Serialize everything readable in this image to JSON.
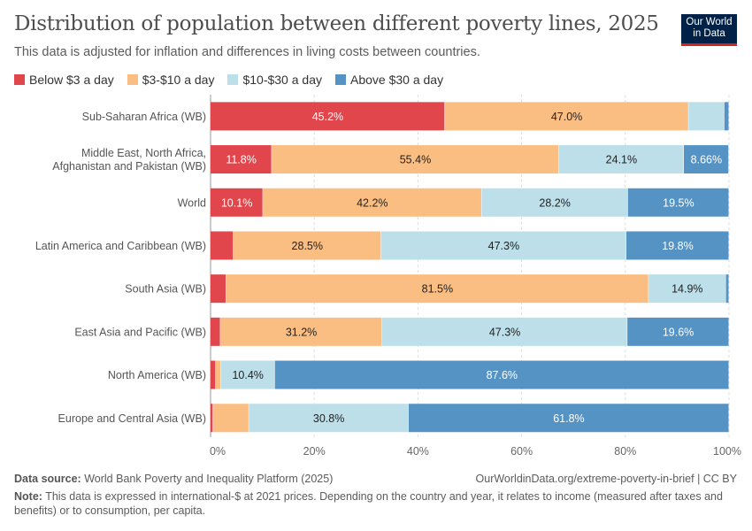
{
  "header": {
    "title": "Distribution of population between different poverty lines, 2025",
    "subtitle": "This data is adjusted for inflation and differences in living costs between countries.",
    "logo_line1": "Our World",
    "logo_line2": "in Data"
  },
  "chart_data": {
    "type": "bar",
    "orientation": "horizontal",
    "stacked": true,
    "title": "Distribution of population between different poverty lines, 2025",
    "categories": [
      [
        "Sub-Saharan Africa (WB)"
      ],
      [
        "Middle East, North Africa,",
        "Afghanistan and Pakistan (WB)"
      ],
      [
        "World"
      ],
      [
        "Latin America and Caribbean (WB)"
      ],
      [
        "South Asia (WB)"
      ],
      [
        "East Asia and Pacific (WB)"
      ],
      [
        "North America (WB)"
      ],
      [
        "Europe and Central Asia (WB)"
      ]
    ],
    "series": [
      {
        "name": "Below $3 a day",
        "color": "#e0464b",
        "label_color": "#ffffff",
        "values": [
          45.2,
          11.8,
          10.1,
          4.4,
          3.0,
          1.9,
          1.0,
          0.5
        ],
        "labels": [
          "45.2%",
          "11.8%",
          "10.1%",
          "",
          "",
          "",
          "",
          ""
        ]
      },
      {
        "name": "$3-$10 a day",
        "color": "#fbbe82",
        "label_color": "#222222",
        "values": [
          47.0,
          55.4,
          42.2,
          28.5,
          81.5,
          31.2,
          1.0,
          6.9
        ],
        "labels": [
          "47.0%",
          "55.4%",
          "42.2%",
          "28.5%",
          "81.5%",
          "31.2%",
          "",
          ""
        ]
      },
      {
        "name": "$10-$30 a day",
        "color": "#bcdfea",
        "label_color": "#222222",
        "values": [
          6.9,
          24.1,
          28.2,
          47.3,
          14.9,
          47.3,
          10.4,
          30.8
        ],
        "labels": [
          "",
          "24.1%",
          "28.2%",
          "47.3%",
          "14.9%",
          "47.3%",
          "10.4%",
          "30.8%"
        ]
      },
      {
        "name": "Above $30 a day",
        "color": "#5593c5",
        "label_color": "#ffffff",
        "values": [
          0.9,
          8.66,
          19.5,
          19.8,
          0.6,
          19.6,
          87.6,
          61.8
        ],
        "labels": [
          "",
          "8.66%",
          "19.5%",
          "19.8%",
          "",
          "19.6%",
          "87.6%",
          "61.8%"
        ]
      }
    ],
    "xlim": [
      0,
      100
    ],
    "xticks": [
      "0%",
      "20%",
      "40%",
      "60%",
      "80%",
      "100%"
    ],
    "grid": true,
    "legend": "top"
  },
  "footer": {
    "source_label": "Data source:",
    "source": "World Bank Poverty and Inequality Platform (2025)",
    "url": "OurWorldinData.org/extreme-poverty-in-brief | CC BY",
    "note_label": "Note:",
    "note": "This data is expressed in international-$ at 2021 prices. Depending on the country and year, it relates to income (measured after taxes and benefits) or to consumption, per capita."
  }
}
